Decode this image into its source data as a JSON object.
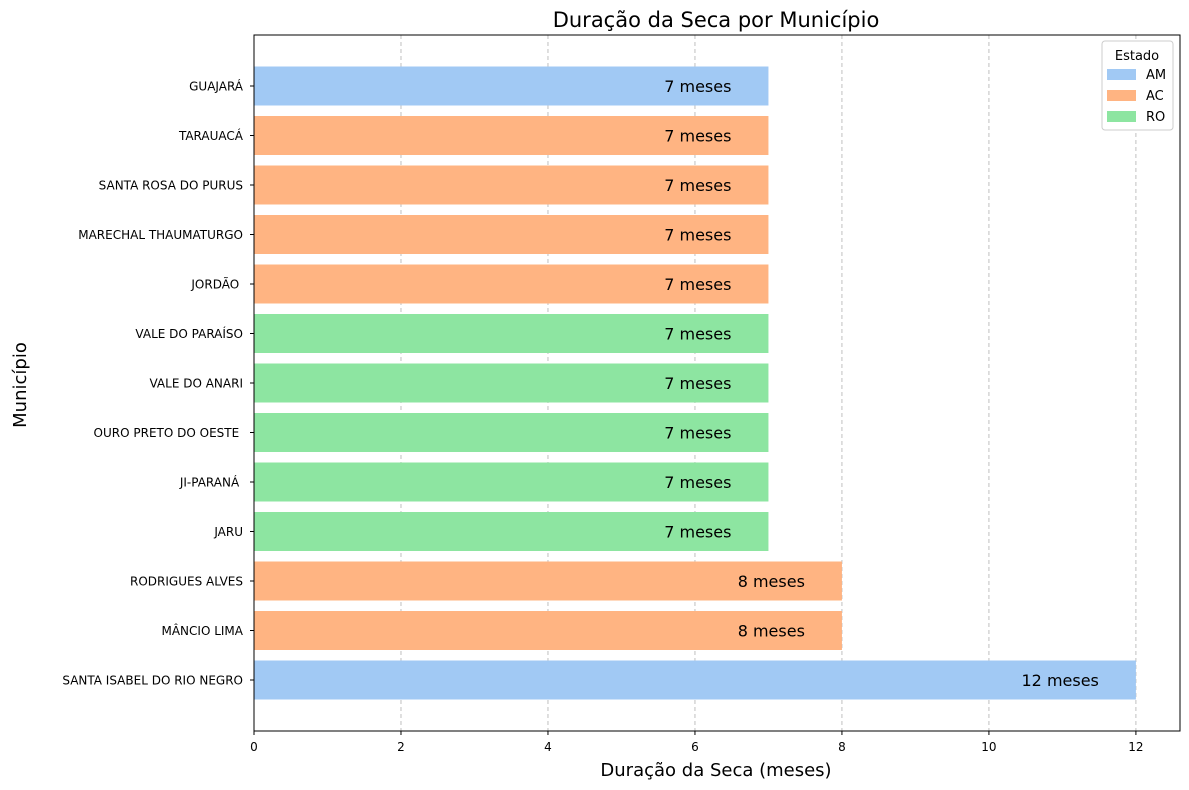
{
  "chart_data": {
    "type": "bar",
    "orientation": "horizontal",
    "title": "Duração da Seca por Município",
    "xlabel": "Duração da Seca (meses)",
    "ylabel": "Município",
    "xlim": [
      0,
      12.6
    ],
    "xticks": [
      0,
      2,
      4,
      6,
      8,
      10,
      12
    ],
    "grid": "x-dashed",
    "legend": {
      "title": "Estado",
      "placement": "top-right",
      "entries": [
        {
          "label": "AM",
          "color": "#a1c9f4"
        },
        {
          "label": "AC",
          "color": "#ffb482"
        },
        {
          "label": "RO",
          "color": "#8de5a1"
        }
      ]
    },
    "bar_label_suffix": " meses",
    "bars": [
      {
        "category": "GUAJARÁ",
        "value": 7,
        "estado": "AM"
      },
      {
        "category": "TARAUACÁ",
        "value": 7,
        "estado": "AC"
      },
      {
        "category": "SANTA ROSA DO PURUS",
        "value": 7,
        "estado": "AC"
      },
      {
        "category": "MARECHAL THAUMATURGO",
        "value": 7,
        "estado": "AC"
      },
      {
        "category": "JORDÃO ",
        "value": 7,
        "estado": "AC"
      },
      {
        "category": "VALE DO PARAÍSO",
        "value": 7,
        "estado": "RO"
      },
      {
        "category": "VALE DO ANARI",
        "value": 7,
        "estado": "RO"
      },
      {
        "category": "OURO PRETO DO OESTE ",
        "value": 7,
        "estado": "RO"
      },
      {
        "category": "JI-PARANÁ ",
        "value": 7,
        "estado": "RO"
      },
      {
        "category": "JARU",
        "value": 7,
        "estado": "RO"
      },
      {
        "category": "RODRIGUES ALVES",
        "value": 8,
        "estado": "AC"
      },
      {
        "category": "MÂNCIO LIMA",
        "value": 8,
        "estado": "AC"
      },
      {
        "category": "SANTA ISABEL DO RIO NEGRO",
        "value": 12,
        "estado": "AM"
      }
    ]
  }
}
